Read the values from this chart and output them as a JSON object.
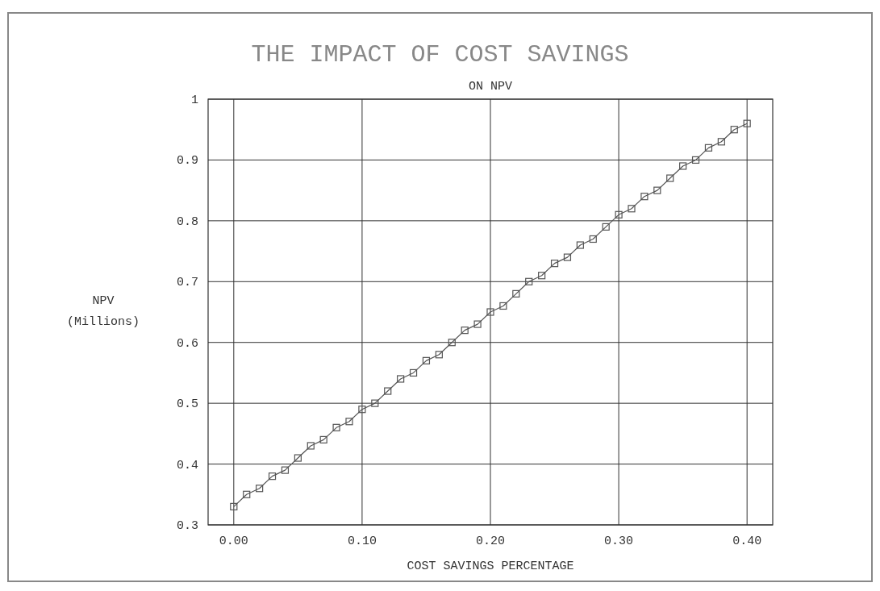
{
  "chart_data": {
    "type": "line",
    "title": "THE IMPACT OF COST SAVINGS",
    "subtitle": "ON NPV",
    "xlabel": "COST SAVINGS PERCENTAGE",
    "ylabel": "NPV (Millions)",
    "x": [
      0,
      0.01,
      0.02,
      0.03,
      0.04,
      0.05,
      0.06,
      0.07,
      0.08,
      0.09,
      0.1,
      0.11,
      0.12,
      0.13,
      0.14,
      0.15,
      0.16,
      0.17,
      0.18,
      0.19,
      0.2,
      0.21,
      0.22,
      0.23,
      0.24,
      0.25,
      0.26,
      0.27,
      0.28,
      0.29,
      0.3,
      0.31,
      0.32,
      0.33,
      0.34,
      0.35,
      0.36,
      0.37,
      0.38,
      0.39,
      0.4
    ],
    "series": [
      {
        "color": "#555555",
        "values": [
          0.33,
          0.35,
          0.36,
          0.38,
          0.39,
          0.41,
          0.43,
          0.44,
          0.46,
          0.47,
          0.49,
          0.5,
          0.52,
          0.54,
          0.55,
          0.57,
          0.58,
          0.6,
          0.62,
          0.63,
          0.65,
          0.66,
          0.68,
          0.7,
          0.71,
          0.73,
          0.74,
          0.76,
          0.77,
          0.79,
          0.81,
          0.82,
          0.84,
          0.85,
          0.87,
          0.89,
          0.9,
          0.92,
          0.93,
          0.95,
          0.96
        ]
      }
    ],
    "xlim": [
      -0.02,
      0.42
    ],
    "xticks": [
      {
        "value": 0,
        "label": "0.00"
      },
      {
        "value": 0.1,
        "label": "0.10"
      },
      {
        "value": 0.2,
        "label": "0.20"
      },
      {
        "value": 0.3,
        "label": "0.30"
      },
      {
        "value": 0.4,
        "label": "0.40"
      }
    ],
    "ylim": [
      0.3,
      1
    ],
    "yticks": [
      0.3,
      0.4,
      0.5,
      0.6,
      0.7,
      0.8,
      0.9,
      1
    ],
    "grid": true,
    "marker": "square",
    "line_style": "solid"
  }
}
